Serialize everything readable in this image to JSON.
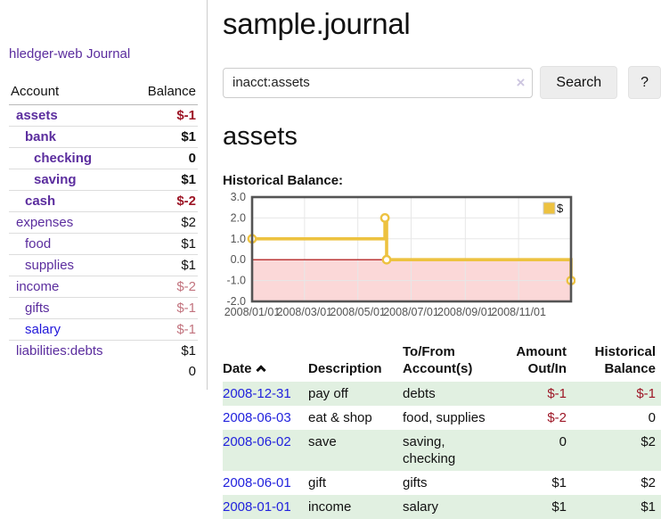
{
  "sidebar": {
    "brand": "hledger-web",
    "nav": {
      "journal_label": "Journal"
    },
    "accounts_table": {
      "headers": {
        "account": "Account",
        "balance": "Balance"
      },
      "rows": [
        {
          "name": "assets",
          "depth": 1,
          "bold": true,
          "link_color": "purple",
          "balance": "$-1",
          "balance_class": "neg-strong"
        },
        {
          "name": "bank",
          "depth": 2,
          "bold": true,
          "link_color": "purple",
          "balance": "$1",
          "balance_class": "pos"
        },
        {
          "name": "checking",
          "depth": 3,
          "bold": true,
          "link_color": "purple",
          "balance": "0",
          "balance_class": "pos"
        },
        {
          "name": "saving",
          "depth": 3,
          "bold": true,
          "link_color": "purple",
          "balance": "$1",
          "balance_class": "pos"
        },
        {
          "name": "cash",
          "depth": 2,
          "bold": true,
          "link_color": "purple",
          "balance": "$-2",
          "balance_class": "neg-strong"
        },
        {
          "name": "expenses",
          "depth": 1,
          "bold": false,
          "link_color": "purple",
          "balance": "$2",
          "balance_class": "pos"
        },
        {
          "name": "food",
          "depth": 2,
          "bold": false,
          "link_color": "purple",
          "balance": "$1",
          "balance_class": "pos"
        },
        {
          "name": "supplies",
          "depth": 2,
          "bold": false,
          "link_color": "purple",
          "balance": "$1",
          "balance_class": "pos"
        },
        {
          "name": "income",
          "depth": 1,
          "bold": false,
          "link_color": "purple",
          "balance": "$-2",
          "balance_class": "neg-muted"
        },
        {
          "name": "gifts",
          "depth": 2,
          "bold": false,
          "link_color": "purple",
          "balance": "$-1",
          "balance_class": "neg-muted"
        },
        {
          "name": "salary",
          "depth": 2,
          "bold": false,
          "link_color": "blue",
          "balance": "$-1",
          "balance_class": "neg-muted"
        },
        {
          "name": "liabilities:debts",
          "depth": 1,
          "bold": false,
          "link_color": "purple",
          "balance": "$1",
          "balance_class": "pos"
        }
      ],
      "total": "0"
    }
  },
  "main": {
    "title": "sample.journal",
    "search": {
      "value": "inacct:assets",
      "clear_icon": "×",
      "button_label": "Search",
      "help_label": "?"
    },
    "account_heading": "assets",
    "chart_heading": "Historical Balance:",
    "register": {
      "headers": {
        "date": "Date",
        "description": "Description",
        "accounts": "To/From Account(s)",
        "amount": "Amount Out/In",
        "balance": "Historical Balance"
      },
      "rows": [
        {
          "date": "2008-12-31",
          "description": "pay off",
          "accounts": "debts",
          "amount": "$-1",
          "amount_class": "neg-strong",
          "balance": "$-1",
          "balance_class": "neg-strong",
          "shade": true
        },
        {
          "date": "2008-06-03",
          "description": "eat & shop",
          "accounts": "food, supplies",
          "amount": "$-2",
          "amount_class": "neg-strong",
          "balance": "0",
          "balance_class": "pos",
          "shade": false
        },
        {
          "date": "2008-06-02",
          "description": "save",
          "accounts": "saving, checking",
          "amount": "0",
          "amount_class": "pos",
          "balance": "$2",
          "balance_class": "pos",
          "shade": true
        },
        {
          "date": "2008-06-01",
          "description": "gift",
          "accounts": "gifts",
          "amount": "$1",
          "amount_class": "pos",
          "balance": "$2",
          "balance_class": "pos",
          "shade": false
        },
        {
          "date": "2008-01-01",
          "description": "income",
          "accounts": "salary",
          "amount": "$1",
          "amount_class": "pos",
          "balance": "$1",
          "balance_class": "pos",
          "shade": true
        }
      ]
    }
  },
  "colors": {
    "link_purple": "#5b2d9e",
    "link_blue": "#2016d9",
    "date_blue": "#2222dd",
    "negative_strong": "#9d1626",
    "negative_muted": "#c2737e",
    "row_green": "#e1f0e1",
    "chart_line": "#edc240",
    "chart_below_zero": "#fbd8d8",
    "chart_zero_line": "#aa0000",
    "chart_border": "#545454"
  },
  "chart_data": {
    "type": "line",
    "title": "Historical Balance:",
    "steps": true,
    "series": [
      {
        "name": "$",
        "color": "#edc240",
        "points": [
          [
            "2008-01-01",
            1
          ],
          [
            "2008-06-01",
            2
          ],
          [
            "2008-06-03",
            0
          ],
          [
            "2008-12-31",
            -1
          ]
        ]
      }
    ],
    "x_range": [
      "2008-01-01",
      "2008-12-31"
    ],
    "ylim": [
      -2,
      3
    ],
    "y_ticks": [
      {
        "v": 3,
        "label": "3.0"
      },
      {
        "v": 2,
        "label": "2.0"
      },
      {
        "v": 1,
        "label": "1.0"
      },
      {
        "v": 0,
        "label": "0.0"
      },
      {
        "v": -1,
        "label": "-1.0"
      },
      {
        "v": -2,
        "label": "-2.0"
      }
    ],
    "x_ticks": [
      {
        "d": "2008-01-01",
        "label": "2008/01/01"
      },
      {
        "d": "2008-03-01",
        "label": "2008/03/01"
      },
      {
        "d": "2008-05-01",
        "label": "2008/05/01"
      },
      {
        "d": "2008-07-01",
        "label": "2008/07/01"
      },
      {
        "d": "2008-09-01",
        "label": "2008/09/01"
      },
      {
        "d": "2008-11-01",
        "label": "2008/11/01"
      }
    ],
    "grid": true,
    "legend": {
      "position": "top-right",
      "label": "$"
    },
    "below_zero_fill": "#fbd8d8",
    "zero_line_color": "#aa0000"
  }
}
